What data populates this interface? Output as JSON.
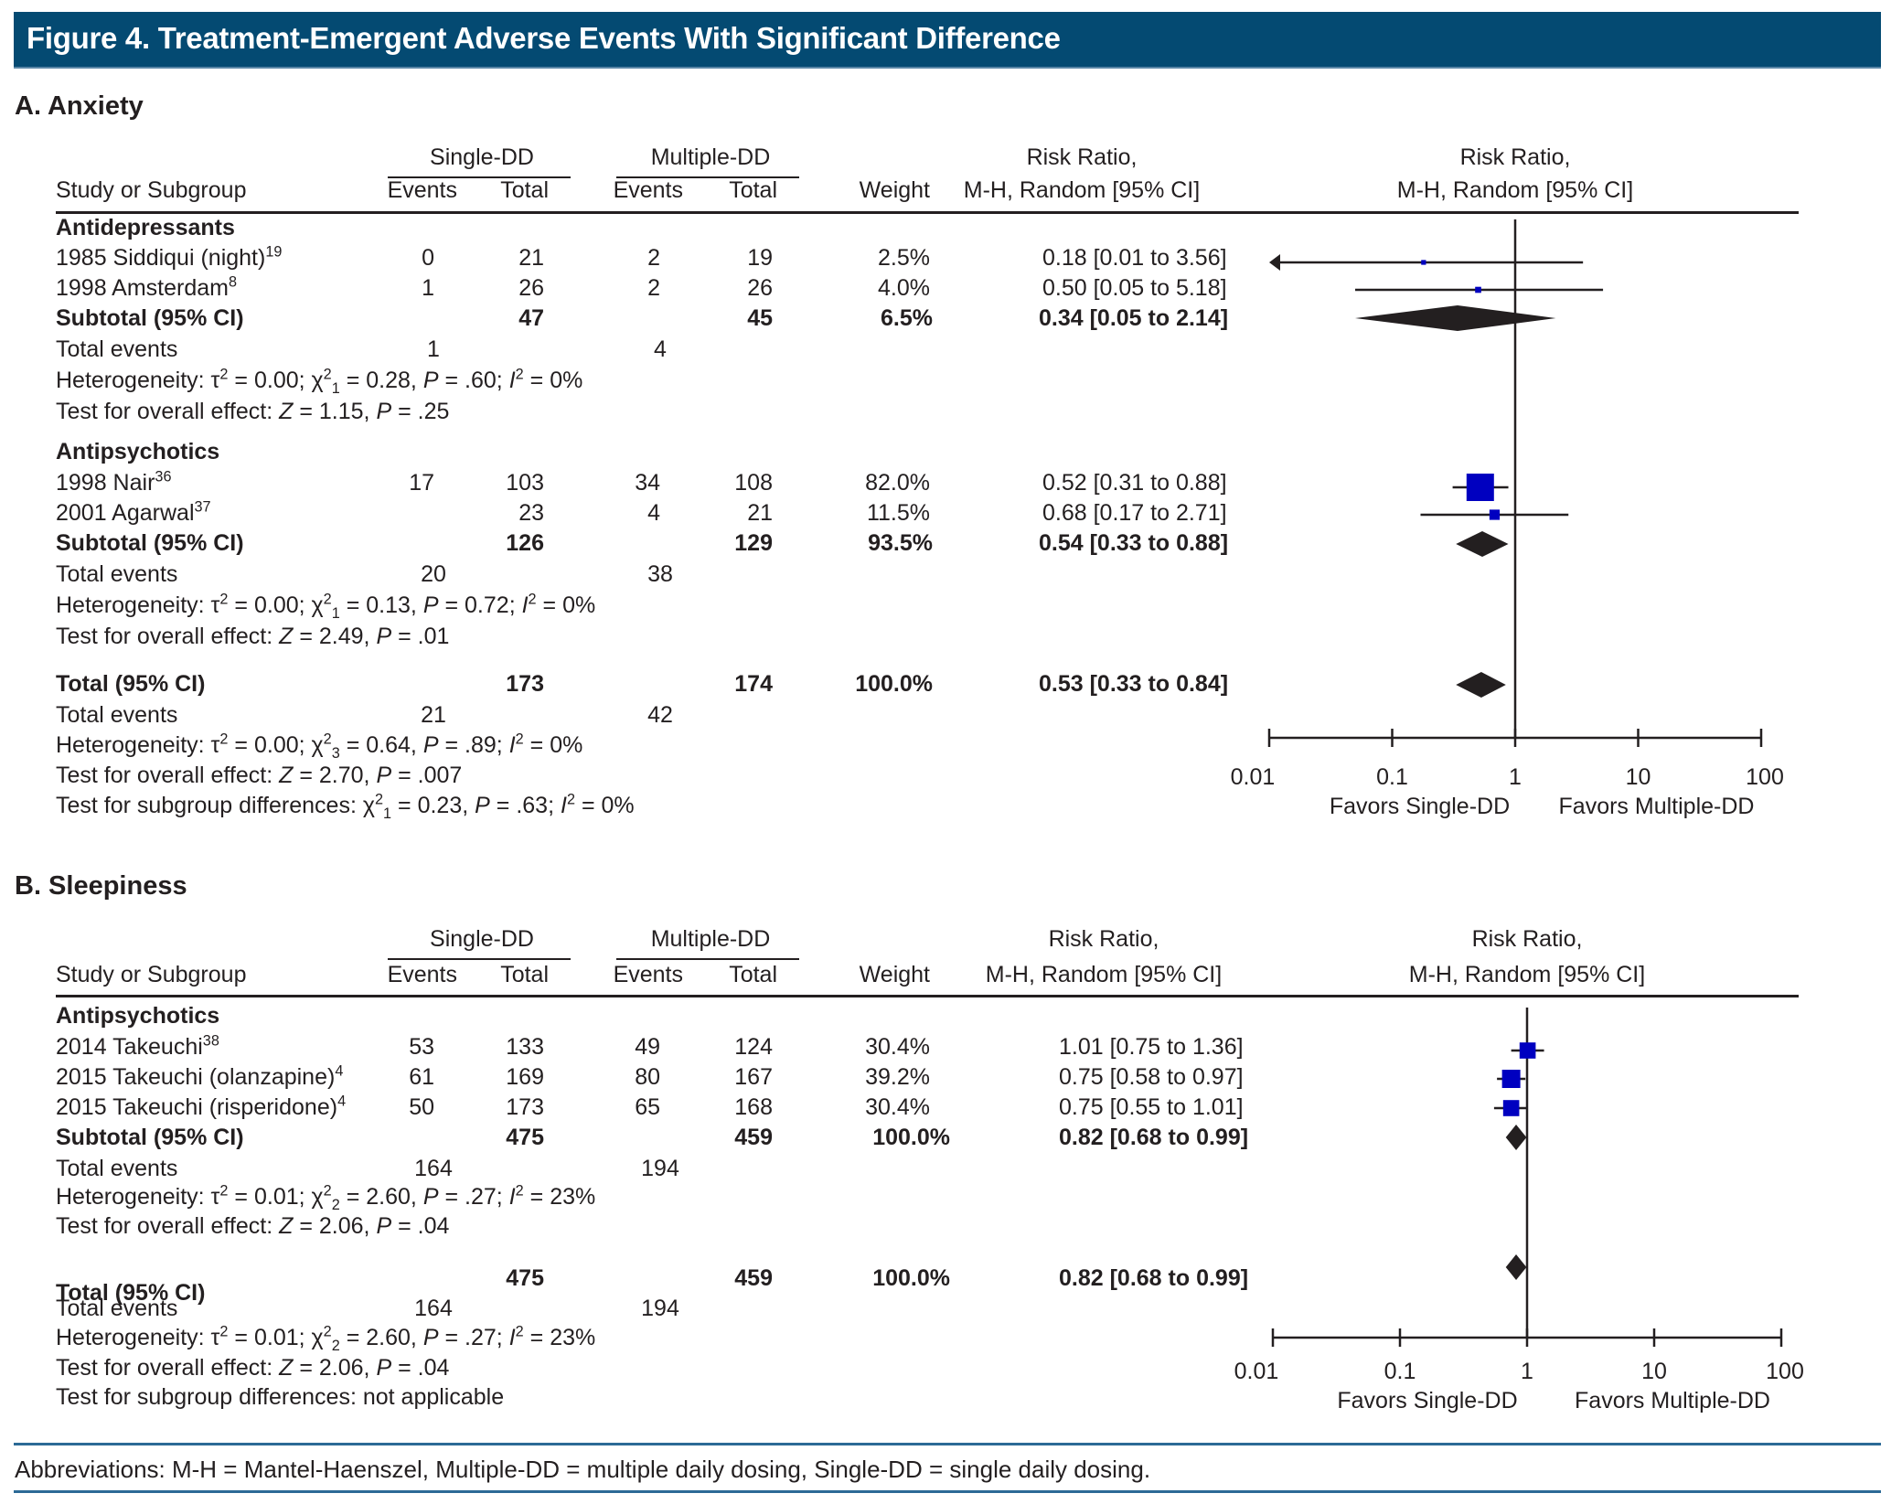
{
  "figure_title": "Figure 4. Treatment-Emergent Adverse Events With Significant Difference",
  "colors": {
    "banner": "#044a72",
    "study_marker": "#0000c0",
    "diamond": "#231f20",
    "rule": "#2c6a96"
  },
  "columns": {
    "study": "Study or Subgroup",
    "single_group": "Single-DD",
    "multiple_group": "Multiple-DD",
    "events": "Events",
    "total": "Total",
    "weight": "Weight",
    "rr_line1": "Risk Ratio,",
    "rr_line2": "M-H, Random [95% CI]",
    "plot_line1": "Risk Ratio,",
    "plot_line2": "M-H, Random [95% CI]"
  },
  "sections": [
    {
      "title": "A. Anxiety",
      "subgroups": [
        {
          "name": "Antidepressants",
          "studies": [
            {
              "label": "1985 Siddiqui (night)",
              "ref": "19",
              "se": "0",
              "st": "21",
              "me": "2",
              "mt": "19",
              "weight": "2.5%",
              "rr_text": "0.18 [0.01 to 3.56]",
              "rr": 0.18,
              "lo": 0.01,
              "hi": 3.56,
              "w": 2.5,
              "arrow_left": true
            },
            {
              "label": "1998 Amsterdam",
              "ref": "8",
              "se": "1",
              "st": "26",
              "me": "2",
              "mt": "26",
              "weight": "4.0%",
              "rr_text": "0.50 [0.05 to 5.18]",
              "rr": 0.5,
              "lo": 0.05,
              "hi": 5.18,
              "w": 4.0
            }
          ],
          "subtotal": {
            "label": "Subtotal (95% CI)",
            "st": "47",
            "mt": "45",
            "weight": "6.5%",
            "rr_text": "0.34 [0.05 to 2.14]",
            "rr": 0.34,
            "lo": 0.05,
            "hi": 2.14
          },
          "total_events": {
            "label": "Total events",
            "single": "1",
            "multiple": "4"
          },
          "heterogeneity": {
            "prefix": "Heterogeneity: τ",
            "tau2": "0.00",
            "chi_df": "1",
            "chi2": "0.28",
            "p": ".60",
            "i2": "0%"
          },
          "overall": {
            "prefix": "Test for overall effect: ",
            "z": "1.15",
            "p": ".25"
          }
        },
        {
          "name": "Antipsychotics",
          "studies": [
            {
              "label": "1998 Nair",
              "ref": "36",
              "se": "17",
              "st": "103",
              "me": "34",
              "mt": "108",
              "weight": "82.0%",
              "rr_text": "0.52 [0.31 to 0.88]",
              "rr": 0.52,
              "lo": 0.31,
              "hi": 0.88,
              "w": 82.0
            },
            {
              "label": "2001 Agarwal",
              "ref": "37",
              "se": "",
              "st": "23",
              "me": "4",
              "mt": "21",
              "weight": "11.5%",
              "rr_text": "0.68 [0.17 to 2.71]",
              "rr": 0.68,
              "lo": 0.17,
              "hi": 2.71,
              "w": 11.5
            }
          ],
          "subtotal": {
            "label": "Subtotal (95% CI)",
            "st": "126",
            "mt": "129",
            "weight": "93.5%",
            "rr_text": "0.54 [0.33 to 0.88]",
            "rr": 0.54,
            "lo": 0.33,
            "hi": 0.88
          },
          "total_events": {
            "label": "Total events",
            "single": "20",
            "multiple": "38"
          },
          "heterogeneity": {
            "prefix": "Heterogeneity: τ",
            "tau2": "0.00",
            "chi_df": "1",
            "chi2": "0.13",
            "p": "0.72",
            "i2": "0%"
          },
          "overall": {
            "prefix": "Test for overall effect: ",
            "z": "2.49",
            "p": ".01"
          }
        }
      ],
      "total": {
        "label": "Total (95% CI)",
        "st": "173",
        "mt": "174",
        "weight": "100.0%",
        "rr_text": "0.53 [0.33 to 0.84]",
        "rr": 0.53,
        "lo": 0.33,
        "hi": 0.84
      },
      "total_events": {
        "label": "Total events",
        "single": "21",
        "multiple": "42"
      },
      "heterogeneity": {
        "prefix": "Heterogeneity: τ",
        "tau2": "0.00",
        "chi_df": "3",
        "chi2": "0.64",
        "p": ".89",
        "i2": "0%"
      },
      "overall": {
        "prefix": "Test for overall effect: ",
        "z": "2.70",
        "p": ".007"
      },
      "subgroup_diff": {
        "prefix": "Test for subgroup differences: ",
        "chi_df": "1",
        "chi2": "0.23",
        "p": ".63",
        "i2": "0%"
      },
      "axis": {
        "ticks": [
          "0.01",
          "0.1",
          "1",
          "10",
          "100"
        ],
        "favors_left": "Favors Single-DD",
        "favors_right": "Favors Multiple-DD"
      }
    },
    {
      "title": "B. Sleepiness",
      "subgroups": [
        {
          "name": "Antipsychotics",
          "studies": [
            {
              "label": "2014 Takeuchi",
              "ref": "38",
              "se": "53",
              "st": "133",
              "me": "49",
              "mt": "124",
              "weight": "30.4%",
              "rr_text": "1.01 [0.75 to 1.36]",
              "rr": 1.01,
              "lo": 0.75,
              "hi": 1.36,
              "w": 30.4
            },
            {
              "label": "2015 Takeuchi (olanzapine)",
              "ref": "4",
              "se": "61",
              "st": "169",
              "me": "80",
              "mt": "167",
              "weight": "39.2%",
              "rr_text": "0.75 [0.58 to 0.97]",
              "rr": 0.75,
              "lo": 0.58,
              "hi": 0.97,
              "w": 39.2
            },
            {
              "label": "2015 Takeuchi (risperidone)",
              "ref": "4",
              "se": "50",
              "st": "173",
              "me": "65",
              "mt": "168",
              "weight": "30.4%",
              "rr_text": "0.75 [0.55 to 1.01]",
              "rr": 0.75,
              "lo": 0.55,
              "hi": 1.01,
              "w": 30.4
            }
          ],
          "subtotal": {
            "label": "Subtotal (95% CI)",
            "st": "475",
            "mt": "459",
            "weight": "100.0%",
            "rr_text": "0.82 [0.68 to 0.99]",
            "rr": 0.82,
            "lo": 0.68,
            "hi": 0.99
          },
          "total_events": {
            "label": "Total events",
            "single": "164",
            "multiple": "194"
          },
          "heterogeneity": {
            "prefix": "Heterogeneity: τ",
            "tau2": "0.01",
            "chi_df": "2",
            "chi2": "2.60",
            "p": ".27",
            "i2": "23%"
          },
          "overall": {
            "prefix": "Test for overall effect: ",
            "z": "2.06",
            "p": ".04"
          }
        }
      ],
      "total": {
        "label": "Total (95% CI)",
        "st": "475",
        "mt": "459",
        "weight": "100.0%",
        "rr_text": "0.82 [0.68 to 0.99]",
        "rr": 0.82,
        "lo": 0.68,
        "hi": 0.99
      },
      "total_events": {
        "label": "Total events",
        "single": "164",
        "multiple": "194"
      },
      "heterogeneity": {
        "prefix": "Heterogeneity: τ",
        "tau2": "0.01",
        "chi_df": "2",
        "chi2": "2.60",
        "p": ".27",
        "i2": "23%"
      },
      "overall": {
        "prefix": "Test for overall effect: ",
        "z": "2.06",
        "p": ".04"
      },
      "subgroup_diff_text": "Test for subgroup differences: not applicable",
      "axis": {
        "ticks": [
          "0.01",
          "0.1",
          "1",
          "10",
          "100"
        ],
        "favors_left": "Favors Single-DD",
        "favors_right": "Favors Multiple-DD"
      }
    }
  ],
  "footer": "Abbreviations: M-H = Mantel-Haenszel, Multiple-DD = multiple daily dosing, Single-DD = single daily dosing.",
  "chart_data": [
    {
      "type": "forest",
      "title": "A. Anxiety",
      "xscale": "log",
      "xlim": [
        0.01,
        100
      ],
      "xticks": [
        0.01,
        0.1,
        1,
        10,
        100
      ],
      "reference_line": 1,
      "xlabel_left": "Favors Single-DD",
      "xlabel_right": "Favors Multiple-DD",
      "studies": [
        {
          "name": "1985 Siddiqui (night)",
          "rr": 0.18,
          "ci": [
            0.01,
            3.56
          ],
          "weight": 2.5
        },
        {
          "name": "1998 Amsterdam",
          "rr": 0.5,
          "ci": [
            0.05,
            5.18
          ],
          "weight": 4.0
        },
        {
          "name": "Subtotal Antidepressants",
          "rr": 0.34,
          "ci": [
            0.05,
            2.14
          ],
          "weight": 6.5,
          "diamond": true
        },
        {
          "name": "1998 Nair",
          "rr": 0.52,
          "ci": [
            0.31,
            0.88
          ],
          "weight": 82.0
        },
        {
          "name": "2001 Agarwal",
          "rr": 0.68,
          "ci": [
            0.17,
            2.71
          ],
          "weight": 11.5
        },
        {
          "name": "Subtotal Antipsychotics",
          "rr": 0.54,
          "ci": [
            0.33,
            0.88
          ],
          "weight": 93.5,
          "diamond": true
        },
        {
          "name": "Total",
          "rr": 0.53,
          "ci": [
            0.33,
            0.84
          ],
          "weight": 100.0,
          "diamond": true
        }
      ]
    },
    {
      "type": "forest",
      "title": "B. Sleepiness",
      "xscale": "log",
      "xlim": [
        0.01,
        100
      ],
      "xticks": [
        0.01,
        0.1,
        1,
        10,
        100
      ],
      "reference_line": 1,
      "xlabel_left": "Favors Single-DD",
      "xlabel_right": "Favors Multiple-DD",
      "studies": [
        {
          "name": "2014 Takeuchi",
          "rr": 1.01,
          "ci": [
            0.75,
            1.36
          ],
          "weight": 30.4
        },
        {
          "name": "2015 Takeuchi (olanzapine)",
          "rr": 0.75,
          "ci": [
            0.58,
            0.97
          ],
          "weight": 39.2
        },
        {
          "name": "2015 Takeuchi (risperidone)",
          "rr": 0.75,
          "ci": [
            0.55,
            1.01
          ],
          "weight": 30.4
        },
        {
          "name": "Subtotal Antipsychotics",
          "rr": 0.82,
          "ci": [
            0.68,
            0.99
          ],
          "weight": 100.0,
          "diamond": true
        },
        {
          "name": "Total",
          "rr": 0.82,
          "ci": [
            0.68,
            0.99
          ],
          "weight": 100.0,
          "diamond": true
        }
      ]
    }
  ]
}
